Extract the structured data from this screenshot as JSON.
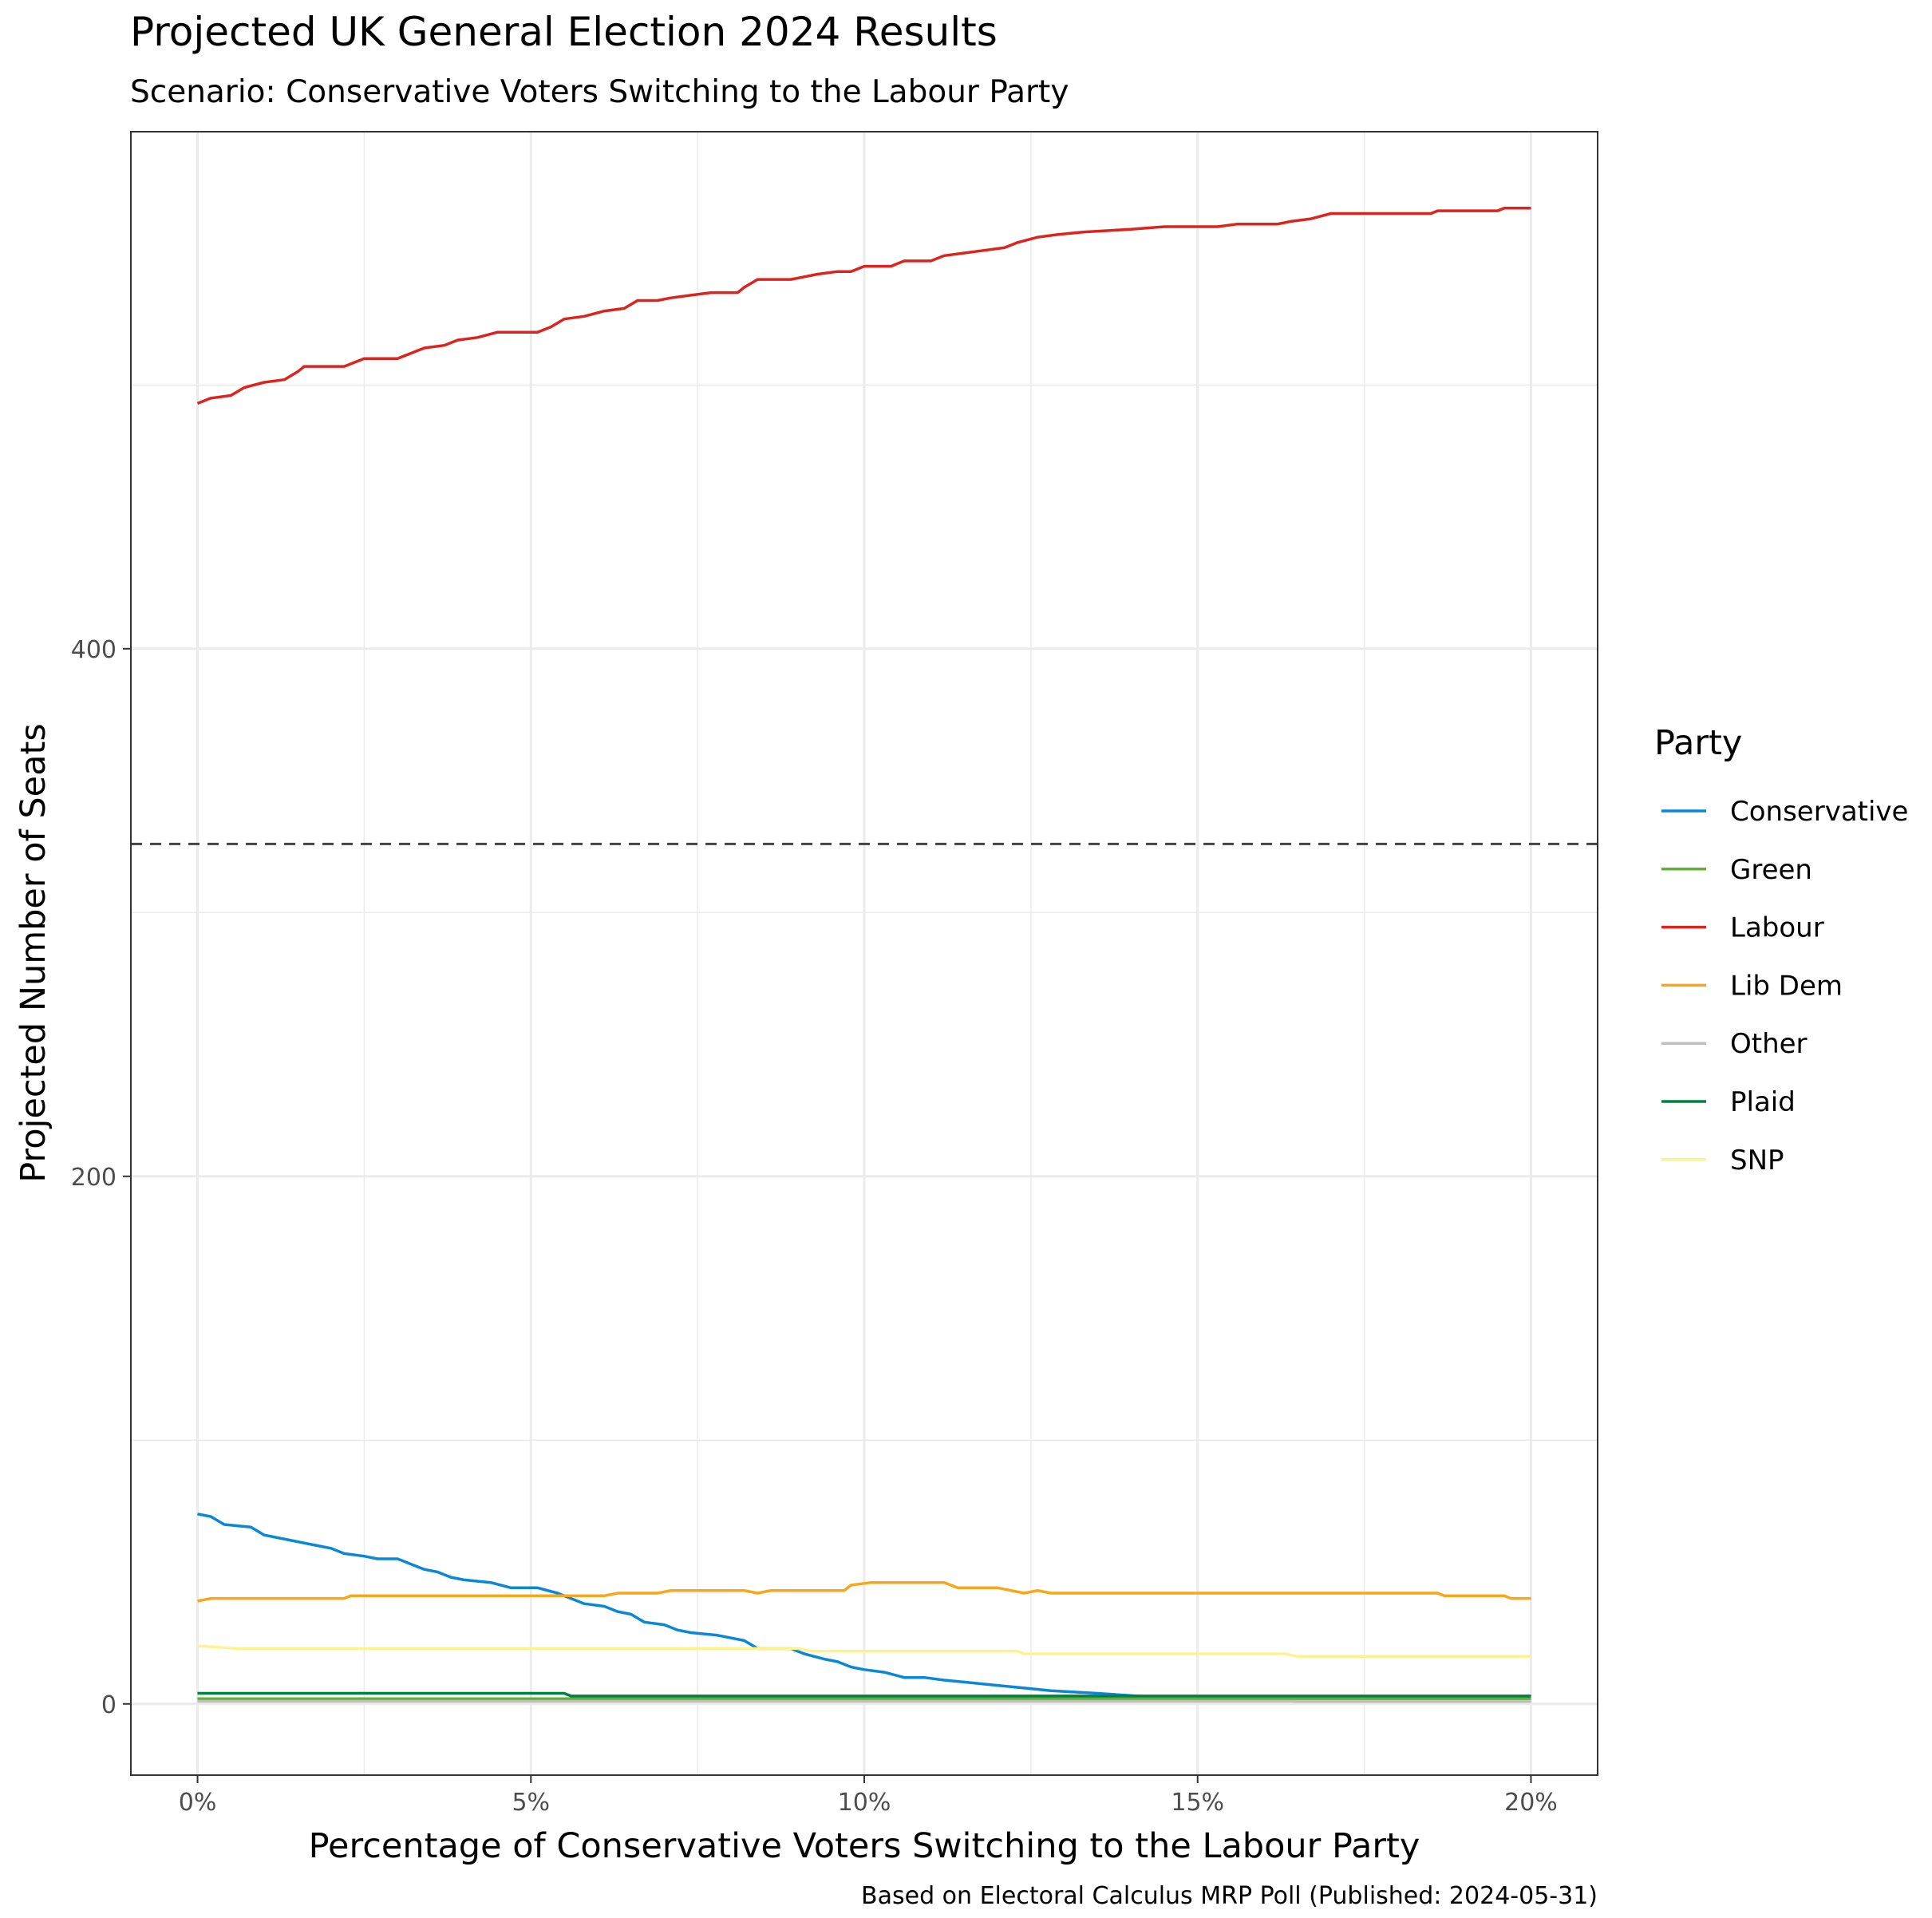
{
  "chart_data": {
    "type": "line",
    "title": "Projected UK General Election 2024 Results",
    "subtitle": "Scenario: Conservative Voters Switching to the Labour Party",
    "xlabel": "Percentage of Conservative Voters Switching to the Labour Party",
    "ylabel": "Projected Number of Seats",
    "caption": "Based on Electoral Calculus MRP Poll (Published: 2024-05-31)",
    "xlim": [
      -1,
      21
    ],
    "ylim": [
      -27,
      596
    ],
    "x_ticks": [
      {
        "value": 0,
        "label": "0%"
      },
      {
        "value": 5,
        "label": "5%"
      },
      {
        "value": 10,
        "label": "10%"
      },
      {
        "value": 15,
        "label": "15%"
      },
      {
        "value": 20,
        "label": "20%"
      }
    ],
    "y_ticks": [
      {
        "value": 0,
        "label": "0"
      },
      {
        "value": 200,
        "label": "200"
      },
      {
        "value": 400,
        "label": "400"
      }
    ],
    "y_minor_gridlines": [
      100,
      300,
      500
    ],
    "x_minor_gridlines": [
      2.5,
      7.5,
      12.5,
      17.5
    ],
    "grid": true,
    "reference_line": {
      "y": 326,
      "style": "dashed",
      "color": "#444444"
    },
    "legend": {
      "title": "Party",
      "position": "right"
    },
    "series": [
      {
        "name": "Conservative",
        "color": "#0a87d6",
        "points": [
          [
            0,
            72
          ],
          [
            0.2,
            71
          ],
          [
            0.4,
            68
          ],
          [
            0.8,
            67
          ],
          [
            1,
            64
          ],
          [
            1.4,
            62
          ],
          [
            1.6,
            61
          ],
          [
            1.8,
            60
          ],
          [
            2,
            59
          ],
          [
            2.2,
            57
          ],
          [
            2.5,
            56
          ],
          [
            2.7,
            55
          ],
          [
            3,
            55
          ],
          [
            3.2,
            53
          ],
          [
            3.4,
            51
          ],
          [
            3.6,
            50
          ],
          [
            3.8,
            48
          ],
          [
            4,
            47
          ],
          [
            4.4,
            46
          ],
          [
            4.7,
            44
          ],
          [
            5.1,
            44
          ],
          [
            5.4,
            42
          ],
          [
            5.6,
            40
          ],
          [
            5.8,
            38
          ],
          [
            6.1,
            37
          ],
          [
            6.3,
            35
          ],
          [
            6.5,
            34
          ],
          [
            6.7,
            31
          ],
          [
            7,
            30
          ],
          [
            7.2,
            28
          ],
          [
            7.4,
            27
          ],
          [
            7.8,
            26
          ],
          [
            8.2,
            24
          ],
          [
            8.4,
            21
          ],
          [
            8.9,
            21
          ],
          [
            9.1,
            19
          ],
          [
            9.4,
            17
          ],
          [
            9.6,
            16
          ],
          [
            9.8,
            14
          ],
          [
            10,
            13
          ],
          [
            10.3,
            12
          ],
          [
            10.6,
            10
          ],
          [
            10.9,
            10
          ],
          [
            11.2,
            9
          ],
          [
            11.6,
            8
          ],
          [
            12,
            7
          ],
          [
            12.4,
            6
          ],
          [
            12.8,
            5
          ],
          [
            13.5,
            4
          ],
          [
            14.1,
            3
          ],
          [
            15.2,
            2
          ],
          [
            16.5,
            1
          ],
          [
            20,
            1
          ]
        ]
      },
      {
        "name": "Green",
        "color": "#5fb12e",
        "points": [
          [
            0,
            2
          ],
          [
            20,
            2
          ]
        ]
      },
      {
        "name": "Labour",
        "color": "#dc241f",
        "points": [
          [
            0,
            493
          ],
          [
            0.2,
            495
          ],
          [
            0.5,
            496
          ],
          [
            0.7,
            499
          ],
          [
            1,
            501
          ],
          [
            1.3,
            502
          ],
          [
            1.5,
            505
          ],
          [
            1.6,
            507
          ],
          [
            2,
            507
          ],
          [
            2.2,
            507
          ],
          [
            2.4,
            509
          ],
          [
            2.5,
            510
          ],
          [
            3,
            510
          ],
          [
            3.2,
            512
          ],
          [
            3.4,
            514
          ],
          [
            3.7,
            515
          ],
          [
            3.9,
            517
          ],
          [
            4.2,
            518
          ],
          [
            4.5,
            520
          ],
          [
            4.9,
            520
          ],
          [
            5.1,
            520
          ],
          [
            5.3,
            522
          ],
          [
            5.5,
            525
          ],
          [
            5.8,
            526
          ],
          [
            6.1,
            528
          ],
          [
            6.4,
            529
          ],
          [
            6.6,
            532
          ],
          [
            6.9,
            532
          ],
          [
            7.1,
            533
          ],
          [
            7.4,
            534
          ],
          [
            7.7,
            535
          ],
          [
            8.1,
            535
          ],
          [
            8.2,
            537
          ],
          [
            8.4,
            540
          ],
          [
            8.9,
            540
          ],
          [
            9.3,
            542
          ],
          [
            9.6,
            543
          ],
          [
            9.8,
            543
          ],
          [
            10,
            545
          ],
          [
            10.4,
            545
          ],
          [
            10.6,
            547
          ],
          [
            11,
            547
          ],
          [
            11.2,
            549
          ],
          [
            11.5,
            550
          ],
          [
            11.8,
            551
          ],
          [
            12.1,
            552
          ],
          [
            12.3,
            554
          ],
          [
            12.6,
            556
          ],
          [
            12.9,
            557
          ],
          [
            13.3,
            558
          ],
          [
            14,
            559
          ],
          [
            14.5,
            560
          ],
          [
            15.3,
            560
          ],
          [
            15.6,
            561
          ],
          [
            16.2,
            561
          ],
          [
            16.4,
            562
          ],
          [
            16.7,
            563
          ],
          [
            17,
            565
          ],
          [
            18.5,
            565
          ],
          [
            18.6,
            566
          ],
          [
            19.5,
            566
          ],
          [
            19.6,
            567
          ],
          [
            20,
            567
          ]
        ]
      },
      {
        "name": "Lib Dem",
        "color": "#faa61a",
        "points": [
          [
            0,
            39
          ],
          [
            0.2,
            40
          ],
          [
            2.2,
            40
          ],
          [
            2.3,
            41
          ],
          [
            5.5,
            41
          ],
          [
            6.1,
            41
          ],
          [
            6.3,
            42
          ],
          [
            6.9,
            42
          ],
          [
            7.1,
            43
          ],
          [
            8.2,
            43
          ],
          [
            8.4,
            42
          ],
          [
            8.6,
            43
          ],
          [
            9.7,
            43
          ],
          [
            9.8,
            45
          ],
          [
            10.1,
            46
          ],
          [
            11.2,
            46
          ],
          [
            11.4,
            44
          ],
          [
            12,
            44
          ],
          [
            12.2,
            43
          ],
          [
            12.4,
            42
          ],
          [
            12.6,
            43
          ],
          [
            12.8,
            42
          ],
          [
            14,
            42
          ],
          [
            18.6,
            42
          ],
          [
            18.7,
            41
          ],
          [
            19.6,
            41
          ],
          [
            19.7,
            40
          ],
          [
            20,
            40
          ]
        ]
      },
      {
        "name": "Other",
        "color": "#bfbfbf",
        "points": [
          [
            0,
            1
          ],
          [
            20,
            1
          ]
        ]
      },
      {
        "name": "Plaid",
        "color": "#008142",
        "points": [
          [
            0,
            4
          ],
          [
            5.5,
            4
          ],
          [
            5.6,
            3
          ],
          [
            20,
            3
          ]
        ]
      },
      {
        "name": "SNP",
        "color": "#fdf38e",
        "points": [
          [
            0,
            22
          ],
          [
            0.6,
            21
          ],
          [
            9,
            21
          ],
          [
            9.2,
            20
          ],
          [
            12.3,
            20
          ],
          [
            12.4,
            19
          ],
          [
            16.3,
            19
          ],
          [
            16.5,
            18
          ],
          [
            20,
            18
          ]
        ]
      }
    ]
  }
}
